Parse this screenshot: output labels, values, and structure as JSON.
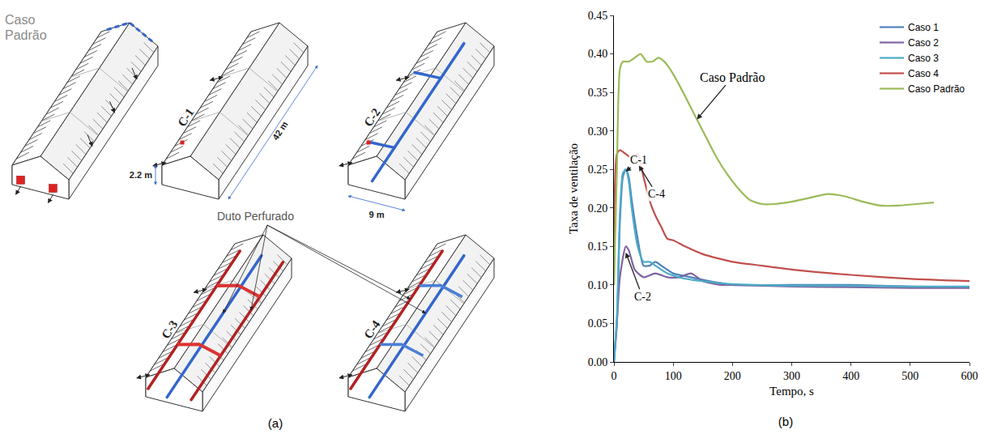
{
  "panel_a": {
    "label": "(a)",
    "cases": [
      "Caso Padrão",
      "C-1",
      "C-2",
      "C-3",
      "C-4"
    ],
    "dimensions": {
      "length": "42 m",
      "height": "2.2 m",
      "width": "9 m"
    },
    "callout": "Duto Perfurado"
  },
  "panel_b": {
    "label": "(b)"
  },
  "chart_data": {
    "type": "line",
    "x_label": "Tempo, s",
    "y_label": "Taxa de ventilação",
    "xlim": [
      0,
      600
    ],
    "xticks": [
      0,
      100,
      200,
      300,
      400,
      500,
      600
    ],
    "ylim": [
      0,
      0.45
    ],
    "yticks": [
      {
        "value": 0,
        "label": "0.00"
      },
      {
        "value": 0.05,
        "label": "0.05"
      },
      {
        "value": 0.1,
        "label": "0.10"
      },
      {
        "value": 0.15,
        "label": "0.15"
      },
      {
        "value": 0.2,
        "label": "0.20"
      },
      {
        "value": 0.25,
        "label": "0.25"
      },
      {
        "value": 0.3,
        "label": "0.30"
      },
      {
        "value": 0.35,
        "label": "0.35"
      },
      {
        "value": 0.4,
        "label": "0.40"
      },
      {
        "value": 0.45,
        "label": "0.45"
      }
    ],
    "grid": false,
    "legend": "upper right",
    "series": [
      {
        "name": "Caso 1",
        "color": "#4f81bd",
        "x": [
          0,
          5,
          10,
          15,
          20,
          25,
          30,
          40,
          50,
          60,
          70,
          80,
          100,
          130,
          160,
          200,
          300,
          400,
          500,
          600
        ],
        "values": [
          0,
          0.05,
          0.18,
          0.24,
          0.25,
          0.24,
          0.21,
          0.16,
          0.125,
          0.125,
          0.13,
          0.125,
          0.115,
          0.11,
          0.105,
          0.1,
          0.1,
          0.1,
          0.098,
          0.097
        ]
      },
      {
        "name": "Caso 2",
        "color": "#8064a2",
        "x": [
          0,
          5,
          10,
          20,
          25,
          35,
          50,
          70,
          90,
          110,
          130,
          150,
          180,
          200,
          300,
          400,
          500,
          600
        ],
        "values": [
          0,
          0.05,
          0.11,
          0.15,
          0.145,
          0.12,
          0.11,
          0.115,
          0.11,
          0.11,
          0.115,
          0.105,
          0.1,
          0.1,
          0.098,
          0.097,
          0.096,
          0.096
        ]
      },
      {
        "name": "Caso 3",
        "color": "#4bacc6",
        "x": [
          0,
          5,
          10,
          15,
          20,
          25,
          30,
          40,
          50,
          60,
          70,
          90,
          120,
          160,
          200,
          300,
          400,
          500,
          600
        ],
        "values": [
          0,
          0.06,
          0.19,
          0.245,
          0.25,
          0.235,
          0.2,
          0.15,
          0.13,
          0.13,
          0.125,
          0.115,
          0.108,
          0.104,
          0.101,
          0.099,
          0.099,
          0.098,
          0.098
        ]
      },
      {
        "name": "Caso 4",
        "color": "#c0504d",
        "x": [
          0,
          5,
          10,
          20,
          30,
          40,
          50,
          60,
          70,
          80,
          90,
          100,
          120,
          150,
          200,
          250,
          300,
          400,
          500,
          600
        ],
        "values": [
          0.1,
          0.27,
          0.275,
          0.27,
          0.265,
          0.27,
          0.24,
          0.21,
          0.19,
          0.175,
          0.16,
          0.158,
          0.15,
          0.14,
          0.13,
          0.125,
          0.12,
          0.113,
          0.108,
          0.105
        ]
      },
      {
        "name": "Caso Padrão",
        "color": "#9bbb59",
        "x": [
          0,
          5,
          10,
          15,
          25,
          35,
          45,
          55,
          65,
          75,
          85,
          95,
          110,
          130,
          150,
          170,
          190,
          210,
          230,
          250,
          270,
          300,
          330,
          360,
          390,
          420,
          450,
          480,
          510,
          540
        ],
        "values": [
          0.1,
          0.25,
          0.38,
          0.39,
          0.39,
          0.395,
          0.4,
          0.39,
          0.39,
          0.395,
          0.39,
          0.38,
          0.36,
          0.33,
          0.3,
          0.27,
          0.245,
          0.225,
          0.21,
          0.205,
          0.205,
          0.208,
          0.213,
          0.218,
          0.215,
          0.208,
          0.203,
          0.203,
          0.205,
          0.207
        ]
      }
    ],
    "annotations": [
      {
        "text": "Caso Padrão",
        "x": 140,
        "y": 0.315,
        "text_x": 200,
        "text_y": 0.37
      },
      {
        "text": "C-1",
        "x": 20,
        "y": 0.247,
        "text_x": 42,
        "text_y": 0.262
      },
      {
        "text": "C-4",
        "x": 42,
        "y": 0.255,
        "text_x": 72,
        "text_y": 0.218
      },
      {
        "text": "C-2",
        "x": 20,
        "y": 0.142,
        "text_x": 48,
        "text_y": 0.085
      }
    ]
  }
}
